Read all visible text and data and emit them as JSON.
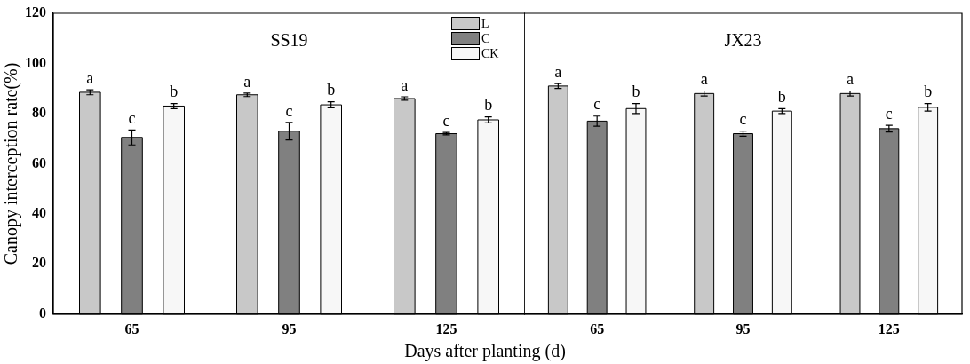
{
  "chart_data": [
    {
      "type": "bar",
      "title": "SS19",
      "ylabel": "Canopy interception rate(%)",
      "xlabel": "Days after planting (d)",
      "categories": [
        "65",
        "95",
        "125"
      ],
      "ylim": [
        0,
        120
      ],
      "yticks": [
        0,
        20,
        40,
        60,
        80,
        100,
        120
      ],
      "grid": false,
      "legend": "top right",
      "series": [
        {
          "name": "L",
          "color": "#c8c8c8",
          "values": [
            88.5,
            87.5,
            86
          ],
          "errors": [
            1,
            0.7,
            0.7
          ],
          "value_labels": [
            "a",
            "a",
            "a"
          ]
        },
        {
          "name": "C",
          "color": "#808080",
          "values": [
            70.5,
            73,
            72
          ],
          "errors": [
            3,
            3.5,
            0.5
          ],
          "value_labels": [
            "c",
            "c",
            "c"
          ]
        },
        {
          "name": "CK",
          "color": "#f7f7f7",
          "values": [
            83,
            83.5,
            77.5
          ],
          "errors": [
            1,
            1.2,
            1.2
          ],
          "value_labels": [
            "b",
            "b",
            "b"
          ]
        }
      ]
    },
    {
      "type": "bar",
      "title": "JX23",
      "categories": [
        "65",
        "95",
        "125"
      ],
      "ylim": [
        0,
        120
      ],
      "yticks": [
        0,
        20,
        40,
        60,
        80,
        100,
        120
      ],
      "grid": false,
      "tick_labels": "x",
      "series": [
        {
          "color": "#c8c8c8",
          "values": [
            91,
            88,
            88
          ],
          "errors": [
            1,
            1,
            1
          ],
          "value_labels": [
            "a",
            "a",
            "a"
          ]
        },
        {
          "color": "#808080",
          "values": [
            77,
            72,
            74
          ],
          "errors": [
            2,
            1,
            1.3
          ],
          "value_labels": [
            "c",
            "c",
            "c"
          ]
        },
        {
          "color": "#f7f7f7",
          "values": [
            82,
            81,
            82.5
          ],
          "errors": [
            2,
            1,
            1.5
          ],
          "value_labels": [
            "b",
            "b",
            "b"
          ]
        }
      ]
    }
  ]
}
